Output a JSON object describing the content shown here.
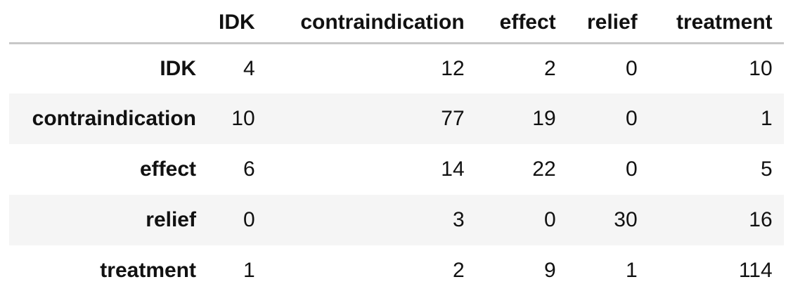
{
  "table": {
    "index_header": "",
    "columns": [
      "IDK",
      "contraindication",
      "effect",
      "relief",
      "treatment"
    ],
    "rows": [
      {
        "label": "IDK",
        "values": [
          "4",
          "12",
          "2",
          "0",
          "10"
        ]
      },
      {
        "label": "contraindication",
        "values": [
          "10",
          "77",
          "19",
          "0",
          "1"
        ]
      },
      {
        "label": "effect",
        "values": [
          "6",
          "14",
          "22",
          "0",
          "5"
        ]
      },
      {
        "label": "relief",
        "values": [
          "0",
          "3",
          "0",
          "30",
          "16"
        ]
      },
      {
        "label": "treatment",
        "values": [
          "1",
          "2",
          "9",
          "1",
          "114"
        ]
      }
    ]
  }
}
